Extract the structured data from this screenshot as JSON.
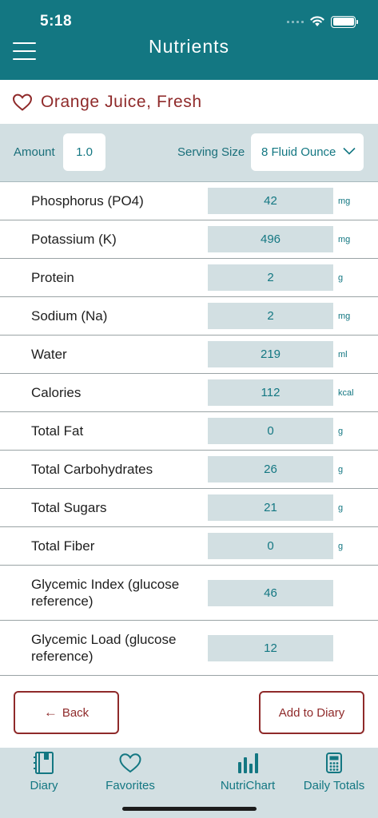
{
  "status_bar": {
    "time": "5:18"
  },
  "header": {
    "title": "Nutrients"
  },
  "food": {
    "name": "Orange Juice, Fresh"
  },
  "serving": {
    "amount_label": "Amount",
    "amount_value": "1.0",
    "size_label": "Serving Size",
    "size_value": "8 Fluid Ounce"
  },
  "nutrients": [
    {
      "label": "Phosphorus (PO4)",
      "value": "42",
      "unit": "mg"
    },
    {
      "label": "Potassium (K)",
      "value": "496",
      "unit": "mg"
    },
    {
      "label": "Protein",
      "value": "2",
      "unit": "g"
    },
    {
      "label": "Sodium (Na)",
      "value": "2",
      "unit": "mg"
    },
    {
      "label": "Water",
      "value": "219",
      "unit": "ml"
    },
    {
      "label": "Calories",
      "value": "112",
      "unit": "kcal"
    },
    {
      "label": "Total Fat",
      "value": "0",
      "unit": "g"
    },
    {
      "label": "Total Carbohydrates",
      "value": "26",
      "unit": "g"
    },
    {
      "label": "Total Sugars",
      "value": "21",
      "unit": "g"
    },
    {
      "label": "Total Fiber",
      "value": "0",
      "unit": "g"
    },
    {
      "label": "Glycemic Index (glucose reference)",
      "value": "46",
      "unit": ""
    },
    {
      "label": "Glycemic Load (glucose reference)",
      "value": "12",
      "unit": ""
    }
  ],
  "actions": {
    "back_label": "Back",
    "add_label": "Add to Diary"
  },
  "tabs": [
    {
      "label": "Diary",
      "icon": "diary-icon"
    },
    {
      "label": "Favorites",
      "icon": "heart-icon"
    },
    {
      "label": "NutriChart",
      "icon": "bar-chart-icon"
    },
    {
      "label": "Daily Totals",
      "icon": "calculator-icon"
    }
  ],
  "colors": {
    "brand": "#137782",
    "accent": "#8f2a2a",
    "panel": "#d2dfe2"
  }
}
